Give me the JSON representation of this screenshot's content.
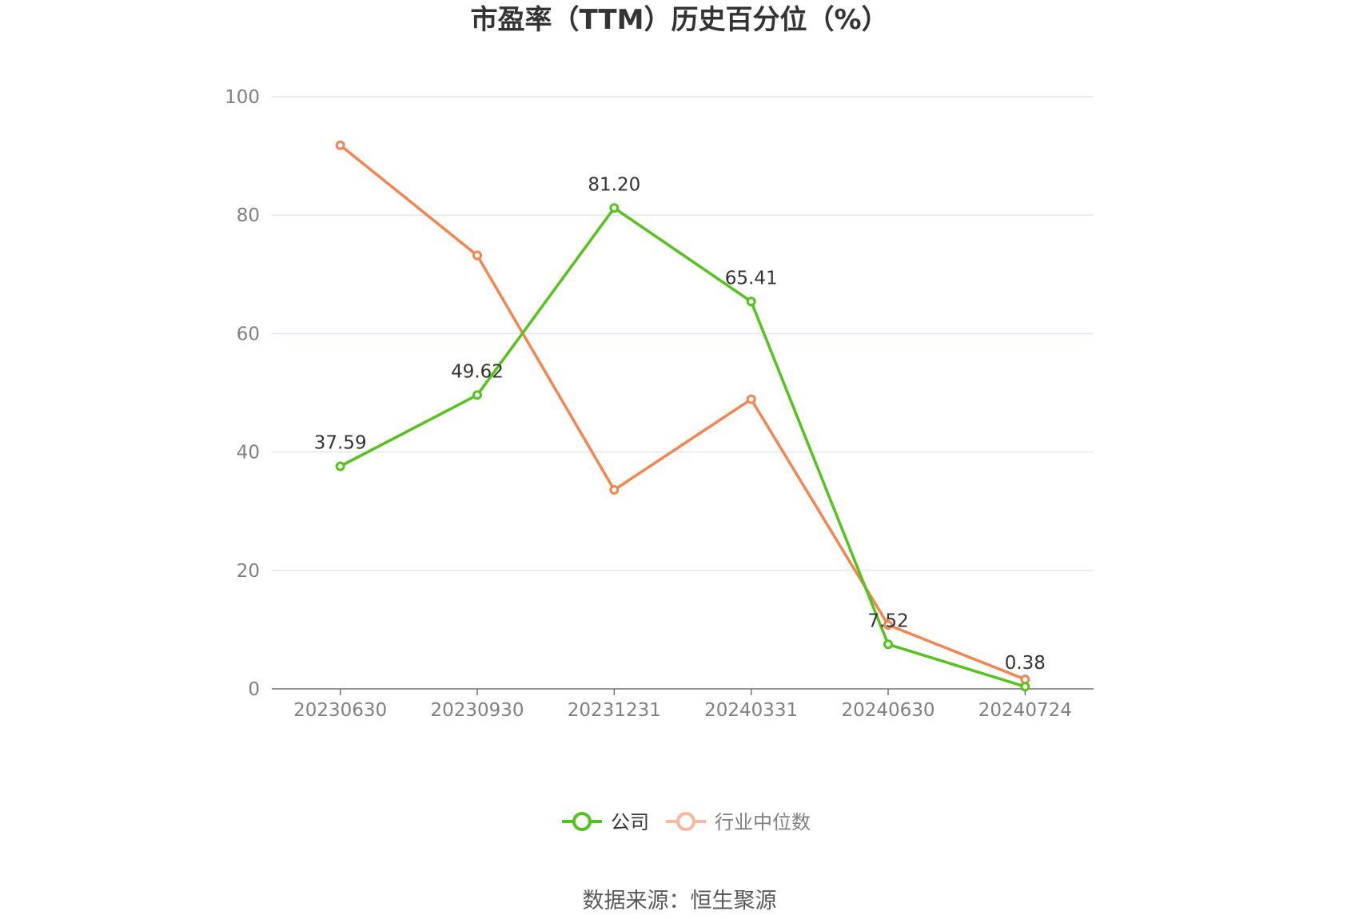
{
  "title": "市盈率（TTM）历史百分位（%）",
  "source": "数据来源：恒生聚源",
  "colors": {
    "company": "#52c41a",
    "industry": "#f5854f",
    "industry_legend": "#f8b99b",
    "grid": "#e0e6f1",
    "axis": "#6e7079"
  },
  "chart_data": {
    "type": "line",
    "title": "市盈率（TTM）历史百分位（%）",
    "xlabel": "",
    "ylabel": "",
    "categories": [
      "20230630",
      "20230930",
      "20231231",
      "20240331",
      "20240630",
      "20240724"
    ],
    "ylim": [
      0,
      100
    ],
    "yticks": [
      0,
      20,
      40,
      60,
      80,
      100
    ],
    "grid": true,
    "legend_position": "bottom-center",
    "series": [
      {
        "name": "公司",
        "values": [
          37.59,
          49.62,
          81.2,
          65.41,
          7.52,
          0.38
        ],
        "labels": [
          "37.59",
          "49.62",
          "81.20",
          "65.41",
          "7.52",
          "0.38"
        ]
      },
      {
        "name": "行业中位数",
        "values": [
          91.8,
          73.2,
          33.6,
          48.9,
          10.8,
          1.6
        ]
      }
    ]
  }
}
